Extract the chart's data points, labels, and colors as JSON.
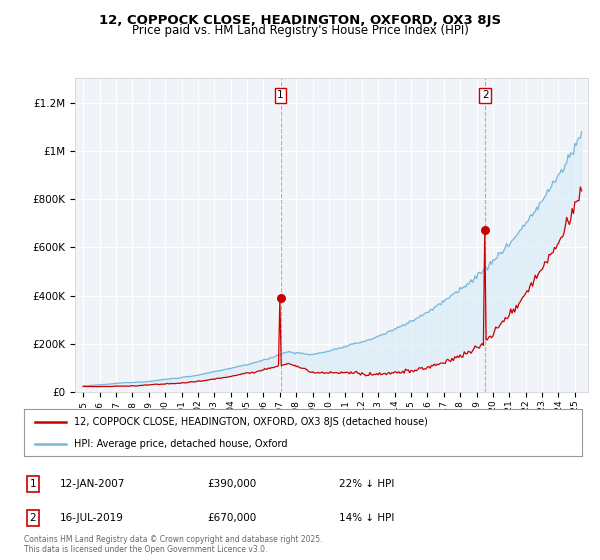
{
  "title": "12, COPPOCK CLOSE, HEADINGTON, OXFORD, OX3 8JS",
  "subtitle": "Price paid vs. HM Land Registry's House Price Index (HPI)",
  "legend_line1": "12, COPPOCK CLOSE, HEADINGTON, OXFORD, OX3 8JS (detached house)",
  "legend_line2": "HPI: Average price, detached house, Oxford",
  "hpi_color": "#7ab8d9",
  "hpi_fill_color": "#d6eaf8",
  "price_color": "#cc0000",
  "dashed_line_color": "#cc0000",
  "annotation1_date": "12-JAN-2007",
  "annotation1_price": "£390,000",
  "annotation1_hpi": "22% ↓ HPI",
  "annotation2_date": "16-JUL-2019",
  "annotation2_price": "£670,000",
  "annotation2_hpi": "14% ↓ HPI",
  "copyright": "Contains HM Land Registry data © Crown copyright and database right 2025.\nThis data is licensed under the Open Government Licence v3.0.",
  "ylim_min": 0,
  "ylim_max": 1300000,
  "sale1_year": 2007.04,
  "sale1_price": 390000,
  "sale2_year": 2019.54,
  "sale2_price": 670000,
  "start_year": 1995,
  "end_year": 2025.5
}
